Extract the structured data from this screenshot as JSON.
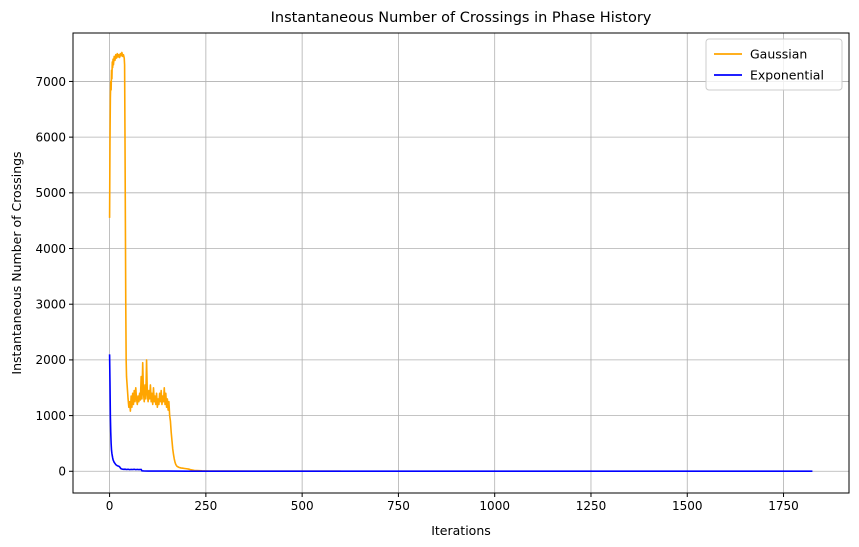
{
  "chart_data": {
    "type": "line",
    "title": "Instantaneous Number of Crossings in Phase History",
    "xlabel": "Iterations",
    "ylabel": "Instantaneous Number of Crossings",
    "xlim": [
      -95,
      1920
    ],
    "ylim": [
      -390,
      7870
    ],
    "x_ticks": [
      0,
      250,
      500,
      750,
      1000,
      1250,
      1500,
      1750
    ],
    "y_ticks": [
      0,
      1000,
      2000,
      3000,
      4000,
      5000,
      6000,
      7000
    ],
    "grid": true,
    "legend_position": "top-right",
    "series": [
      {
        "name": "Gaussian",
        "color": "#ffa500",
        "points": [
          [
            0,
            4550
          ],
          [
            1,
            5900
          ],
          [
            2,
            6700
          ],
          [
            3,
            7000
          ],
          [
            4,
            6850
          ],
          [
            5,
            7200
          ],
          [
            6,
            7050
          ],
          [
            7,
            7350
          ],
          [
            8,
            7250
          ],
          [
            9,
            7400
          ],
          [
            10,
            7300
          ],
          [
            12,
            7450
          ],
          [
            14,
            7380
          ],
          [
            16,
            7480
          ],
          [
            18,
            7420
          ],
          [
            20,
            7500
          ],
          [
            22,
            7440
          ],
          [
            24,
            7480
          ],
          [
            26,
            7430
          ],
          [
            28,
            7500
          ],
          [
            30,
            7460
          ],
          [
            32,
            7520
          ],
          [
            34,
            7450
          ],
          [
            36,
            7480
          ],
          [
            38,
            7420
          ],
          [
            39,
            7300
          ],
          [
            40,
            6000
          ],
          [
            41,
            4500
          ],
          [
            42,
            3000
          ],
          [
            43,
            2000
          ],
          [
            44,
            1700
          ],
          [
            46,
            1500
          ],
          [
            48,
            1300
          ],
          [
            50,
            1150
          ],
          [
            52,
            1250
          ],
          [
            54,
            1080
          ],
          [
            56,
            1350
          ],
          [
            58,
            1150
          ],
          [
            60,
            1400
          ],
          [
            62,
            1200
          ],
          [
            64,
            1450
          ],
          [
            66,
            1250
          ],
          [
            68,
            1500
          ],
          [
            70,
            1300
          ],
          [
            72,
            1200
          ],
          [
            74,
            1350
          ],
          [
            76,
            1250
          ],
          [
            78,
            1400
          ],
          [
            80,
            1280
          ],
          [
            82,
            1700
          ],
          [
            84,
            1300
          ],
          [
            86,
            1950
          ],
          [
            88,
            1400
          ],
          [
            90,
            1250
          ],
          [
            92,
            1550
          ],
          [
            94,
            1300
          ],
          [
            96,
            2000
          ],
          [
            98,
            1400
          ],
          [
            100,
            1250
          ],
          [
            102,
            1450
          ],
          [
            104,
            1300
          ],
          [
            106,
            1550
          ],
          [
            108,
            1250
          ],
          [
            110,
            1400
          ],
          [
            112,
            1200
          ],
          [
            114,
            1500
          ],
          [
            116,
            1250
          ],
          [
            118,
            1350
          ],
          [
            120,
            1200
          ],
          [
            122,
            1400
          ],
          [
            124,
            1150
          ],
          [
            126,
            1300
          ],
          [
            128,
            1200
          ],
          [
            130,
            1400
          ],
          [
            132,
            1250
          ],
          [
            134,
            1450
          ],
          [
            136,
            1200
          ],
          [
            138,
            1350
          ],
          [
            140,
            1250
          ],
          [
            142,
            1500
          ],
          [
            144,
            1200
          ],
          [
            146,
            1400
          ],
          [
            148,
            1150
          ],
          [
            150,
            1300
          ],
          [
            152,
            1100
          ],
          [
            154,
            1250
          ],
          [
            156,
            1000
          ],
          [
            158,
            900
          ],
          [
            160,
            700
          ],
          [
            162,
            550
          ],
          [
            164,
            400
          ],
          [
            166,
            300
          ],
          [
            168,
            220
          ],
          [
            170,
            160
          ],
          [
            172,
            120
          ],
          [
            175,
            90
          ],
          [
            180,
            70
          ],
          [
            185,
            60
          ],
          [
            190,
            55
          ],
          [
            195,
            50
          ],
          [
            200,
            45
          ],
          [
            205,
            40
          ],
          [
            210,
            30
          ],
          [
            220,
            15
          ],
          [
            240,
            8
          ],
          [
            260,
            5
          ],
          [
            300,
            3
          ],
          [
            400,
            2
          ],
          [
            600,
            1
          ]
        ]
      },
      {
        "name": "Exponential",
        "color": "#0000ff",
        "points": [
          [
            0,
            2100
          ],
          [
            1,
            1600
          ],
          [
            2,
            1000
          ],
          [
            3,
            700
          ],
          [
            4,
            500
          ],
          [
            5,
            380
          ],
          [
            6,
            320
          ],
          [
            7,
            280
          ],
          [
            8,
            240
          ],
          [
            9,
            210
          ],
          [
            10,
            190
          ],
          [
            12,
            160
          ],
          [
            14,
            140
          ],
          [
            16,
            120
          ],
          [
            18,
            110
          ],
          [
            20,
            100
          ],
          [
            22,
            95
          ],
          [
            24,
            90
          ],
          [
            26,
            80
          ],
          [
            28,
            60
          ],
          [
            30,
            45
          ],
          [
            32,
            40
          ],
          [
            36,
            35
          ],
          [
            40,
            38
          ],
          [
            44,
            32
          ],
          [
            48,
            36
          ],
          [
            52,
            30
          ],
          [
            56,
            34
          ],
          [
            60,
            32
          ],
          [
            64,
            36
          ],
          [
            68,
            30
          ],
          [
            72,
            34
          ],
          [
            76,
            30
          ],
          [
            80,
            32
          ],
          [
            82,
            34
          ],
          [
            84,
            8
          ],
          [
            90,
            5
          ],
          [
            100,
            4
          ],
          [
            150,
            3
          ],
          [
            200,
            2
          ],
          [
            300,
            2
          ],
          [
            500,
            1
          ],
          [
            1000,
            1
          ],
          [
            1500,
            1
          ],
          [
            1825,
            1
          ]
        ]
      }
    ]
  }
}
